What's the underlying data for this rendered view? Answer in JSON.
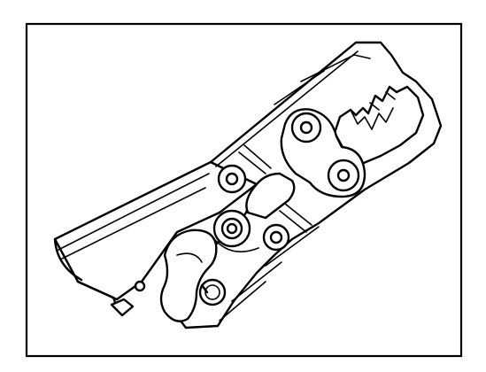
{
  "figure": {
    "subject": "crimping-tool-jaw-mechanism",
    "colors": {
      "ink": "#000000",
      "paper": "#ffffff"
    }
  }
}
